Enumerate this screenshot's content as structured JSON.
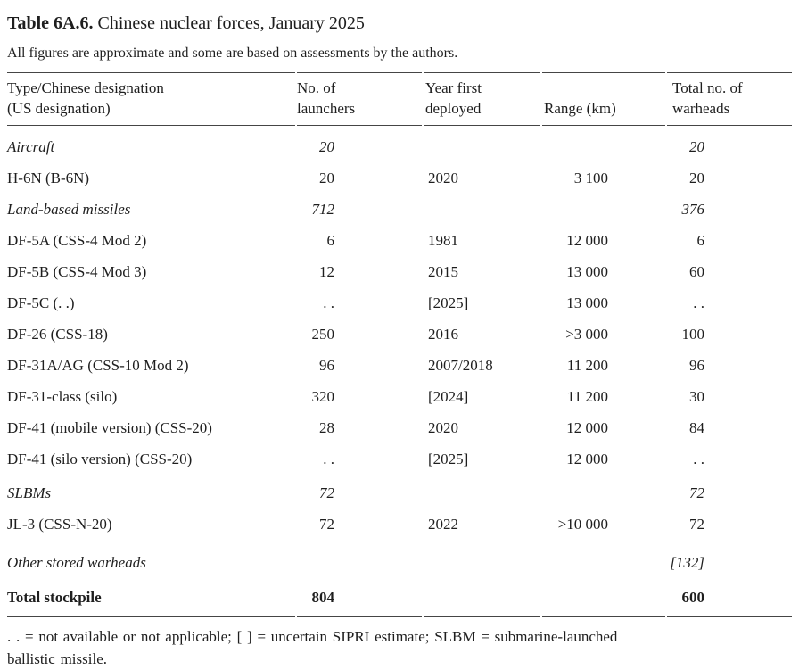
{
  "title": {
    "label": "Table 6A.6.",
    "text": "Chinese nuclear forces, January 2025"
  },
  "subtitle": "All figures are approximate and some are based on assessments by the authors.",
  "table": {
    "headers": [
      {
        "line1": "Type/Chinese designation",
        "line2": "(US designation)"
      },
      {
        "line1": "No. of",
        "line2": "launchers"
      },
      {
        "line1": "Year first",
        "line2": "deployed"
      },
      {
        "line1": "",
        "line2": "Range (km)"
      },
      {
        "line1": "Total no. of",
        "line2": "warheads"
      }
    ],
    "rows": [
      {
        "type": "Aircraft",
        "launchers": "20",
        "year": "",
        "range": "",
        "warheads": "20"
      },
      {
        "type": "H-6N (B-6N)",
        "launchers": "20",
        "year": "2020",
        "range": "3 100",
        "warheads": "20"
      },
      {
        "type": "Land-based missiles",
        "launchers": "712",
        "year": "",
        "range": "",
        "warheads": "376"
      },
      {
        "type": "DF-5A (CSS-4 Mod 2)",
        "launchers": "6",
        "year": "1981",
        "range": "12 000",
        "warheads": "6"
      },
      {
        "type": "DF-5B (CSS-4 Mod 3)",
        "launchers": "12",
        "year": "2015",
        "range": "13 000",
        "warheads": "60"
      },
      {
        "type": "DF-5C (. .)",
        "launchers": ". .",
        "year": "[2025]",
        "range": "13 000",
        "warheads": ". ."
      },
      {
        "type": "DF-26 (CSS-18)",
        "launchers": "250",
        "year": "2016",
        "range": ">3 000",
        "warheads": "100"
      },
      {
        "type": "DF-31A/AG (CSS-10 Mod 2)",
        "launchers": "96",
        "year": "2007/2018",
        "range": "11 200",
        "warheads": "96"
      },
      {
        "type": "DF-31-class (silo)",
        "launchers": "320",
        "year": "[2024]",
        "range": "11 200",
        "warheads": "30"
      },
      {
        "type": "DF-41 (mobile version) (CSS-20)",
        "launchers": "28",
        "year": "2020",
        "range": "12 000",
        "warheads": "84"
      },
      {
        "type": "DF-41 (silo version) (CSS-20)",
        "launchers": ". .",
        "year": "[2025]",
        "range": "12 000",
        "warheads": ". ."
      },
      {
        "type": "SLBMs",
        "launchers": "72",
        "year": "",
        "range": "",
        "warheads": "72"
      },
      {
        "type": "JL-3 (CSS-N-20)",
        "launchers": "72",
        "year": "2022",
        "range": ">10 000",
        "warheads": "72"
      },
      {
        "type": "Other stored warheads",
        "launchers": "",
        "year": "",
        "range": "",
        "warheads": "[132]"
      },
      {
        "type": "Total stockpile",
        "launchers": "804",
        "year": "",
        "range": "",
        "warheads": "600"
      }
    ]
  },
  "footnote": {
    "line1": ". . = not available or not applicable; [ ] = uncertain SIPRI estimate; SLBM = submarine-launched",
    "line2": "ballistic missile."
  },
  "colors": {
    "background": "#ffffff",
    "text": "#1e1e1e",
    "rule": "#454545"
  }
}
